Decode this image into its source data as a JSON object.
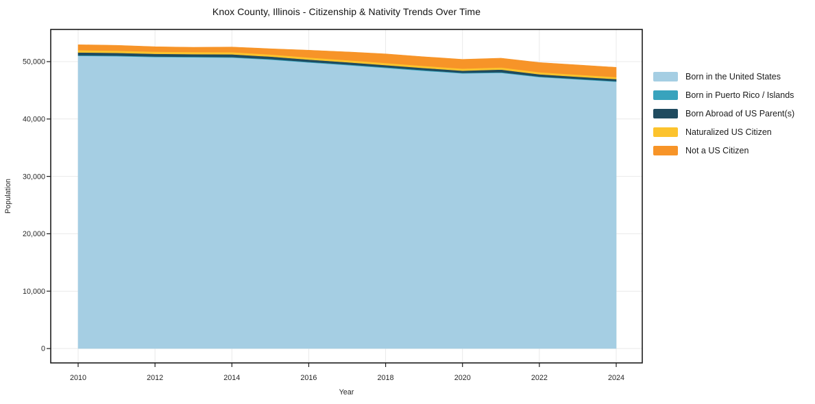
{
  "title": "Knox County, Illinois - Citizenship & Nativity Trends Over Time",
  "colors": {
    "axis": "#1a1a1a",
    "grid": "#e9e9e9",
    "tick_text": "#262626",
    "background": "#ffffff"
  },
  "chart_data": {
    "type": "area",
    "stacked": true,
    "title": "Knox County, Illinois - Citizenship & Nativity Trends Over Time",
    "xlabel": "Year",
    "ylabel": "Population",
    "x": [
      2010,
      2011,
      2012,
      2013,
      2014,
      2015,
      2016,
      2017,
      2018,
      2019,
      2020,
      2021,
      2022,
      2023,
      2024
    ],
    "series": [
      {
        "name": "Born in the United States",
        "color": "#a5cee3",
        "values": [
          51000,
          50950,
          50800,
          50750,
          50700,
          50350,
          49850,
          49400,
          48900,
          48400,
          47950,
          48050,
          47300,
          46900,
          46500
        ]
      },
      {
        "name": "Born in Puerto Rico / Islands",
        "color": "#38a3bd",
        "values": [
          100,
          100,
          100,
          100,
          100,
          100,
          110,
          110,
          120,
          110,
          100,
          100,
          100,
          100,
          100
        ]
      },
      {
        "name": "Born Abroad of US Parent(s)",
        "color": "#1f4b5f",
        "values": [
          500,
          480,
          460,
          450,
          470,
          430,
          400,
          390,
          380,
          380,
          380,
          470,
          400,
          370,
          360
        ]
      },
      {
        "name": "Naturalized US Citizen",
        "color": "#fcc32d",
        "values": [
          400,
          390,
          380,
          370,
          380,
          370,
          360,
          360,
          360,
          360,
          360,
          370,
          360,
          350,
          350
        ]
      },
      {
        "name": "Not a US Citizen",
        "color": "#f79428",
        "values": [
          950,
          930,
          860,
          830,
          900,
          1000,
          1280,
          1440,
          1590,
          1600,
          1610,
          1610,
          1690,
          1700,
          1700
        ]
      }
    ],
    "xticks": [
      2010,
      2012,
      2014,
      2016,
      2018,
      2020,
      2022,
      2024
    ],
    "yticks": [
      0,
      10000,
      20000,
      30000,
      40000,
      50000
    ],
    "ytick_labels": [
      "0",
      "10,000",
      "20,000",
      "30,000",
      "40,000",
      "50,000"
    ],
    "ylim": [
      0,
      55600
    ],
    "grid": true,
    "legend_position": "right"
  }
}
